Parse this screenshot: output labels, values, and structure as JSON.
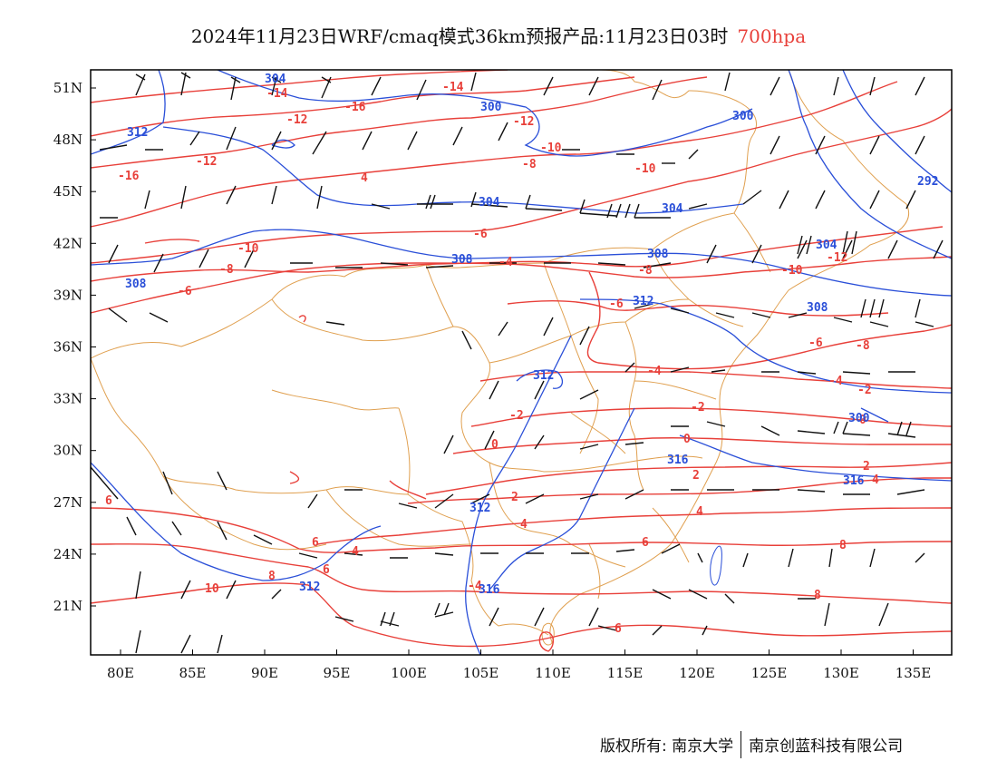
{
  "title": {
    "main": "2024年11月23日WRF/cmaq模式36km预报产品:11月23日03时",
    "level": "700hpa",
    "level_color": "#e8403a"
  },
  "axes": {
    "lon_ticks": [
      "80E",
      "85E",
      "90E",
      "95E",
      "100E",
      "105E",
      "110E",
      "115E",
      "120E",
      "125E",
      "130E",
      "135E"
    ],
    "lat_ticks": [
      "51N",
      "48N",
      "45N",
      "42N",
      "39N",
      "36N",
      "33N",
      "30N",
      "27N",
      "24N",
      "21N"
    ]
  },
  "colors": {
    "temperature_contour": "#e8403a",
    "height_contour": "#2a4fd8",
    "border": "#e0a050",
    "wind_barb": "#111111",
    "frame": "#000000"
  },
  "contour_labels": {
    "temperature": [
      "-14",
      "-14",
      "-16",
      "-12",
      "-12",
      "-16",
      "-12",
      "-10",
      "-8",
      "-10",
      "-10",
      "-8",
      "-6",
      "-8",
      "-10",
      "-10",
      "-12",
      "-6",
      "-4",
      "-8",
      "-6",
      "-4",
      "-4",
      "-2",
      "-2",
      "-2",
      "0",
      "0",
      "0",
      "2",
      "2",
      "4",
      "4",
      "2",
      "4",
      "6",
      "6",
      "6",
      "8",
      "10",
      "8",
      "8",
      "-4",
      "6",
      "6",
      "4",
      "4"
    ],
    "height": [
      "304",
      "300",
      "300",
      "312",
      "304",
      "304",
      "292",
      "308",
      "308",
      "304",
      "308",
      "312",
      "312",
      "308",
      "316",
      "316",
      "312",
      "312",
      "316",
      "300"
    ]
  },
  "footer": {
    "left": "版权所有: 南京大学",
    "right": "南京创蓝科技有限公司"
  }
}
